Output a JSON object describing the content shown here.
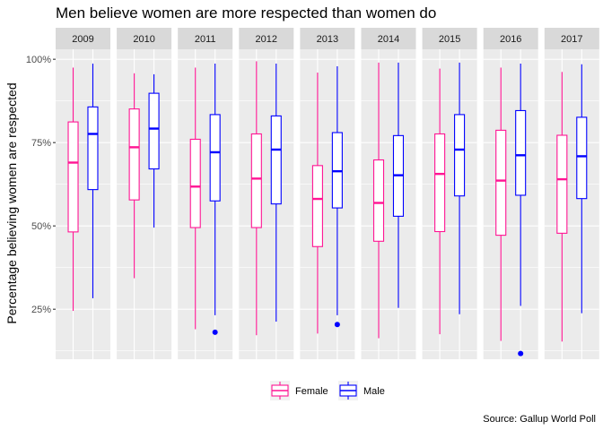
{
  "chart_data": {
    "type": "boxplot",
    "title": "Men believe women are more respected than women do",
    "ylabel": "Percentage believing women are respected",
    "xlabel": "",
    "caption": "Source: Gallup World Poll",
    "ylim": [
      0.1,
      1.03
    ],
    "y_ticks": [
      0.25,
      0.5,
      0.75,
      1.0
    ],
    "y_tick_labels": [
      "25%",
      "50%",
      "75%",
      "100%"
    ],
    "grid": true,
    "legend_position": "bottom",
    "legend": [
      "Female",
      "Male"
    ],
    "colors": {
      "Female": "#ff1493",
      "Male": "#0000ff"
    },
    "panels": [
      {
        "label": "2009",
        "Female": {
          "min": 0.245,
          "q1": 0.482,
          "median": 0.69,
          "q3": 0.812,
          "max": 0.975,
          "outliers": []
        },
        "Male": {
          "min": 0.283,
          "q1": 0.609,
          "median": 0.776,
          "q3": 0.857,
          "max": 0.987,
          "outliers": []
        }
      },
      {
        "label": "2010",
        "Female": {
          "min": 0.343,
          "q1": 0.578,
          "median": 0.736,
          "q3": 0.851,
          "max": 0.958,
          "outliers": []
        },
        "Male": {
          "min": 0.495,
          "q1": 0.671,
          "median": 0.792,
          "q3": 0.898,
          "max": 0.955,
          "outliers": []
        }
      },
      {
        "label": "2011",
        "Female": {
          "min": 0.19,
          "q1": 0.495,
          "median": 0.618,
          "q3": 0.76,
          "max": 0.975,
          "outliers": []
        },
        "Male": {
          "min": 0.232,
          "q1": 0.575,
          "median": 0.721,
          "q3": 0.834,
          "max": 0.987,
          "outliers": [
            0.181
          ]
        }
      },
      {
        "label": "2012",
        "Female": {
          "min": 0.172,
          "q1": 0.495,
          "median": 0.642,
          "q3": 0.776,
          "max": 0.994,
          "outliers": []
        },
        "Male": {
          "min": 0.213,
          "q1": 0.566,
          "median": 0.729,
          "q3": 0.83,
          "max": 0.987,
          "outliers": []
        }
      },
      {
        "label": "2013",
        "Female": {
          "min": 0.177,
          "q1": 0.438,
          "median": 0.581,
          "q3": 0.681,
          "max": 0.96,
          "outliers": []
        },
        "Male": {
          "min": 0.232,
          "q1": 0.554,
          "median": 0.664,
          "q3": 0.78,
          "max": 0.979,
          "outliers": [
            0.204
          ]
        }
      },
      {
        "label": "2014",
        "Female": {
          "min": 0.163,
          "q1": 0.454,
          "median": 0.569,
          "q3": 0.698,
          "max": 0.99,
          "outliers": []
        },
        "Male": {
          "min": 0.254,
          "q1": 0.529,
          "median": 0.652,
          "q3": 0.771,
          "max": 0.99,
          "outliers": []
        }
      },
      {
        "label": "2015",
        "Female": {
          "min": 0.175,
          "q1": 0.483,
          "median": 0.656,
          "q3": 0.776,
          "max": 0.972,
          "outliers": []
        },
        "Male": {
          "min": 0.235,
          "q1": 0.59,
          "median": 0.729,
          "q3": 0.834,
          "max": 0.99,
          "outliers": []
        }
      },
      {
        "label": "2016",
        "Female": {
          "min": 0.155,
          "q1": 0.472,
          "median": 0.636,
          "q3": 0.787,
          "max": 0.975,
          "outliers": []
        },
        "Male": {
          "min": 0.26,
          "q1": 0.592,
          "median": 0.712,
          "q3": 0.846,
          "max": 0.987,
          "outliers": [
            0.117
          ]
        }
      },
      {
        "label": "2017",
        "Female": {
          "min": 0.153,
          "q1": 0.478,
          "median": 0.64,
          "q3": 0.772,
          "max": 0.962,
          "outliers": []
        },
        "Male": {
          "min": 0.238,
          "q1": 0.582,
          "median": 0.709,
          "q3": 0.826,
          "max": 0.985,
          "outliers": []
        }
      }
    ]
  }
}
